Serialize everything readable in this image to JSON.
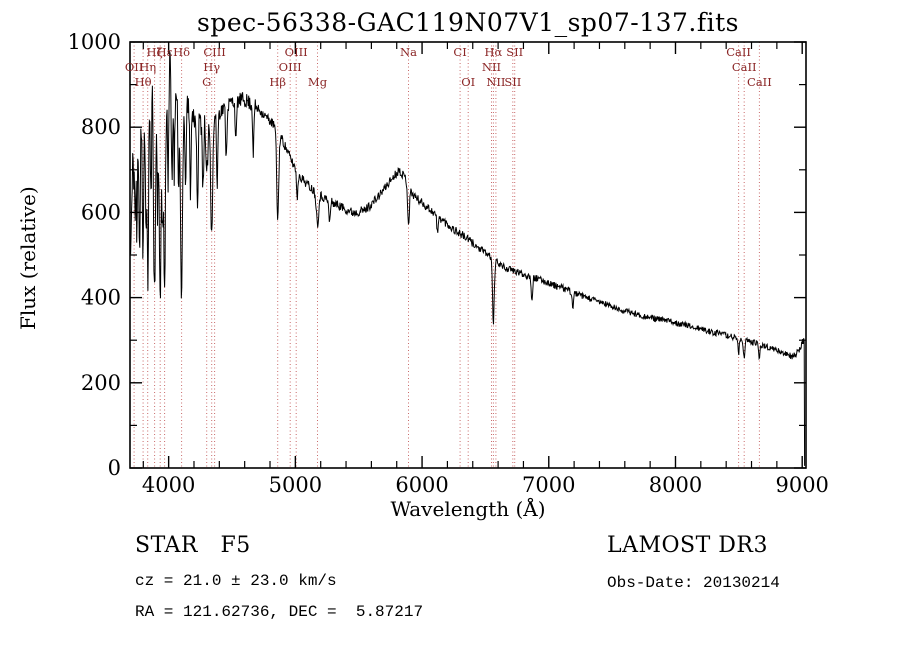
{
  "title": "spec-56338-GAC119N07V1_sp07-137.fits",
  "chart_data": {
    "type": "line",
    "title": "spec-56338-GAC119N07V1_sp07-137.fits",
    "xlabel": "Wavelength (Å)",
    "ylabel": "Flux (relative)",
    "xlim": [
      3695,
      9030
    ],
    "ylim": [
      0,
      1000
    ],
    "x_ticks": [
      4000,
      5000,
      6000,
      7000,
      8000,
      9000
    ],
    "x_minor_step": 200,
    "y_ticks": [
      0,
      200,
      400,
      600,
      800,
      1000
    ],
    "y_minor_step": 100,
    "grid": false,
    "legend": "none",
    "line_color": "#000000",
    "marker_color": "#c96a6a",
    "label_color": "#8b2626",
    "continuum": [
      [
        3700,
        500
      ],
      [
        3730,
        840
      ],
      [
        3780,
        850
      ],
      [
        3830,
        880
      ],
      [
        3880,
        910
      ],
      [
        3930,
        930
      ],
      [
        3970,
        920
      ],
      [
        4010,
        940
      ],
      [
        4060,
        900
      ],
      [
        4110,
        860
      ],
      [
        4160,
        840
      ],
      [
        4220,
        820
      ],
      [
        4300,
        810
      ],
      [
        4400,
        835
      ],
      [
        4500,
        860
      ],
      [
        4600,
        865
      ],
      [
        4700,
        845
      ],
      [
        4800,
        815
      ],
      [
        4860,
        795
      ],
      [
        4920,
        755
      ],
      [
        4980,
        715
      ],
      [
        5050,
        680
      ],
      [
        5150,
        650
      ],
      [
        5250,
        630
      ],
      [
        5350,
        615
      ],
      [
        5450,
        600
      ],
      [
        5550,
        605
      ],
      [
        5650,
        635
      ],
      [
        5750,
        675
      ],
      [
        5820,
        700
      ],
      [
        5870,
        680
      ],
      [
        5920,
        645
      ],
      [
        5970,
        630
      ],
      [
        6050,
        610
      ],
      [
        6150,
        585
      ],
      [
        6250,
        560
      ],
      [
        6350,
        540
      ],
      [
        6450,
        515
      ],
      [
        6550,
        495
      ],
      [
        6650,
        470
      ],
      [
        6750,
        460
      ],
      [
        6850,
        450
      ],
      [
        6950,
        440
      ],
      [
        7050,
        428
      ],
      [
        7150,
        418
      ],
      [
        7250,
        405
      ],
      [
        7350,
        395
      ],
      [
        7450,
        385
      ],
      [
        7550,
        372
      ],
      [
        7650,
        365
      ],
      [
        7750,
        356
      ],
      [
        7850,
        350
      ],
      [
        7950,
        345
      ],
      [
        8050,
        338
      ],
      [
        8150,
        330
      ],
      [
        8250,
        322
      ],
      [
        8350,
        315
      ],
      [
        8450,
        308
      ],
      [
        8550,
        300
      ],
      [
        8650,
        292
      ],
      [
        8750,
        282
      ],
      [
        8850,
        270
      ],
      [
        8920,
        262
      ],
      [
        8970,
        272
      ],
      [
        9000,
        295
      ],
      [
        9016,
        300
      ]
    ],
    "absorption_features": [
      [
        3735,
        250,
        6
      ],
      [
        3750,
        300,
        5
      ],
      [
        3771,
        320,
        5
      ],
      [
        3798,
        380,
        6
      ],
      [
        3820,
        250,
        5
      ],
      [
        3835,
        450,
        6
      ],
      [
        3860,
        280,
        5
      ],
      [
        3889,
        520,
        7
      ],
      [
        3912,
        300,
        5
      ],
      [
        3933,
        570,
        7
      ],
      [
        3952,
        320,
        5
      ],
      [
        3968,
        500,
        7
      ],
      [
        3995,
        250,
        5
      ],
      [
        4026,
        280,
        5
      ],
      [
        4045,
        200,
        5
      ],
      [
        4077,
        220,
        5
      ],
      [
        4101,
        480,
        8
      ],
      [
        4132,
        200,
        5
      ],
      [
        4172,
        180,
        5
      ],
      [
        4227,
        230,
        5
      ],
      [
        4271,
        160,
        5
      ],
      [
        4300,
        140,
        7
      ],
      [
        4340,
        260,
        8
      ],
      [
        4383,
        170,
        5
      ],
      [
        4455,
        120,
        5
      ],
      [
        4531,
        100,
        5
      ],
      [
        4668,
        110,
        5
      ],
      [
        4861,
        210,
        8
      ],
      [
        5015,
        60,
        6
      ],
      [
        5175,
        70,
        9
      ],
      [
        5270,
        50,
        6
      ],
      [
        5893,
        90,
        7
      ],
      [
        6122,
        40,
        6
      ],
      [
        6563,
        150,
        7
      ],
      [
        6867,
        55,
        5
      ],
      [
        7190,
        35,
        6
      ],
      [
        8498,
        35,
        5
      ],
      [
        8542,
        45,
        6
      ],
      [
        8662,
        40,
        5
      ]
    ],
    "noise_bands": [
      [
        3780,
        85
      ],
      [
        4050,
        55
      ],
      [
        4350,
        32
      ],
      [
        4700,
        18
      ],
      [
        5600,
        11
      ],
      [
        6400,
        10
      ],
      [
        7200,
        8
      ],
      [
        9100,
        7
      ]
    ],
    "marker_wavelengths": [
      3727,
      3798,
      3835,
      3889,
      3933,
      3968,
      4102,
      4300,
      4340,
      4363,
      4861,
      4959,
      5007,
      5175,
      5893,
      6300,
      6364,
      6548,
      6563,
      6583,
      6716,
      6731,
      8498,
      8542,
      8662
    ],
    "spectral_lines": [
      {
        "label": "Hζ",
        "wavelength": 3889,
        "row": 1
      },
      {
        "label": "Hε",
        "wavelength": 3968,
        "row": 1
      },
      {
        "label": "Hδ",
        "wavelength": 4102,
        "row": 1
      },
      {
        "label": "CIII",
        "wavelength": 4363,
        "row": 1
      },
      {
        "label": "OIII",
        "wavelength": 5007,
        "row": 1
      },
      {
        "label": "Na",
        "wavelength": 5893,
        "row": 1
      },
      {
        "label": "CI",
        "wavelength": 6300,
        "row": 1
      },
      {
        "label": "Hα",
        "wavelength": 6563,
        "row": 1
      },
      {
        "label": "SII",
        "wavelength": 6731,
        "row": 1
      },
      {
        "label": "CaII",
        "wavelength": 8498,
        "row": 1
      },
      {
        "label": "OII",
        "wavelength": 3727,
        "row": 2
      },
      {
        "label": "Hη",
        "wavelength": 3835,
        "row": 2
      },
      {
        "label": "Hγ",
        "wavelength": 4340,
        "row": 2
      },
      {
        "label": "OIII",
        "wavelength": 4959,
        "row": 2
      },
      {
        "label": "NII",
        "wavelength": 6548,
        "row": 2
      },
      {
        "label": "CaII",
        "wavelength": 8542,
        "row": 2
      },
      {
        "label": "Hθ",
        "wavelength": 3798,
        "row": 3
      },
      {
        "label": "G",
        "wavelength": 4300,
        "row": 3
      },
      {
        "label": "Hβ",
        "wavelength": 4861,
        "row": 3
      },
      {
        "label": "Mg",
        "wavelength": 5175,
        "row": 3
      },
      {
        "label": "OI",
        "wavelength": 6364,
        "row": 3
      },
      {
        "label": "NII",
        "wavelength": 6583,
        "row": 3
      },
      {
        "label": "SII",
        "wavelength": 6716,
        "row": 3
      },
      {
        "label": "CaII",
        "wavelength": 8662,
        "row": 3
      }
    ]
  },
  "annotations": {
    "class_line": "STAR   F5",
    "cz_line": "cz = 21.0 ± 23.0 km/s",
    "radec_line": "RA = 121.62736, DEC =  5.87217",
    "survey": "LAMOST DR3",
    "obs_date": "Obs-Date: 20130214"
  }
}
